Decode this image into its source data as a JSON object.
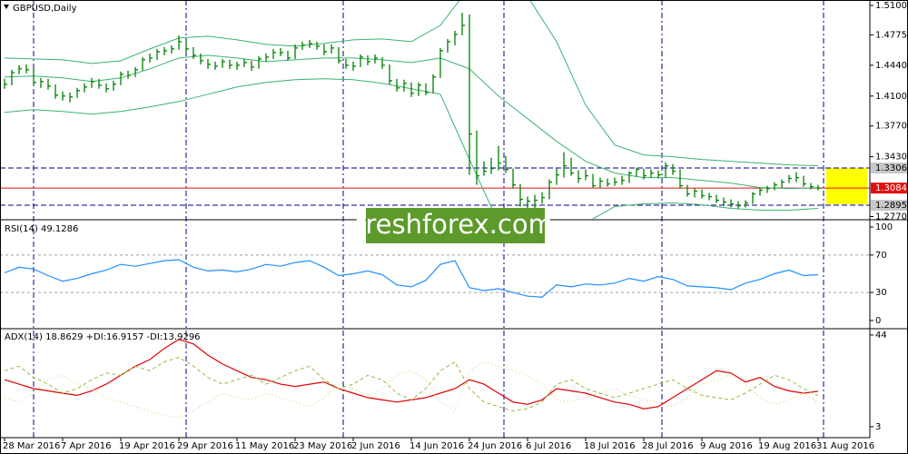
{
  "chart_data": [
    {
      "type": "ohlc",
      "title": "GBPUSD,Daily",
      "color": "#008000",
      "x": [
        0,
        1,
        2,
        3,
        4,
        5,
        6,
        7,
        8,
        9,
        10,
        11,
        12,
        13,
        14,
        15,
        16,
        17,
        18,
        19,
        20,
        21,
        22,
        23,
        24,
        25,
        26,
        27,
        28,
        29,
        30,
        31,
        32,
        33,
        34,
        35,
        36,
        37,
        38,
        39,
        40,
        41,
        42,
        43,
        44,
        45,
        46,
        47,
        48,
        49,
        50,
        51,
        52,
        53,
        54,
        55,
        56,
        57,
        58,
        59,
        60,
        61,
        62,
        63,
        64,
        65,
        66,
        67,
        68,
        69,
        70,
        71,
        72,
        73,
        74,
        75,
        76,
        77,
        78,
        79,
        80,
        81,
        82,
        83,
        84,
        85,
        86,
        87,
        88,
        89,
        90,
        91,
        92,
        93,
        94,
        95,
        96,
        97,
        98,
        99,
        100,
        101,
        102,
        103,
        104,
        105,
        106,
        107,
        108,
        109,
        110,
        111,
        112
      ],
      "high": [
        1.429,
        1.439,
        1.444,
        1.445,
        1.44,
        1.43,
        1.429,
        1.423,
        1.415,
        1.414,
        1.419,
        1.424,
        1.43,
        1.429,
        1.424,
        1.427,
        1.437,
        1.438,
        1.442,
        1.453,
        1.457,
        1.462,
        1.464,
        1.466,
        1.477,
        1.471,
        1.464,
        1.457,
        1.451,
        1.448,
        1.451,
        1.45,
        1.448,
        1.451,
        1.449,
        1.454,
        1.457,
        1.462,
        1.463,
        1.46,
        1.467,
        1.47,
        1.472,
        1.47,
        1.467,
        1.467,
        1.464,
        1.451,
        1.448,
        1.456,
        1.455,
        1.456,
        1.453,
        1.445,
        1.429,
        1.428,
        1.425,
        1.425,
        1.424,
        1.434,
        1.463,
        1.473,
        1.482,
        1.502,
        1.5,
        1.372,
        1.338,
        1.342,
        1.355,
        1.344,
        1.33,
        1.313,
        1.299,
        1.301,
        1.304,
        1.318,
        1.33,
        1.348,
        1.342,
        1.328,
        1.329,
        1.324,
        1.32,
        1.319,
        1.32,
        1.322,
        1.327,
        1.331,
        1.33,
        1.329,
        1.328,
        1.337,
        1.335,
        1.329,
        1.312,
        1.308,
        1.307,
        1.303,
        1.301,
        1.298,
        1.296,
        1.294,
        1.295,
        1.304,
        1.309,
        1.311,
        1.315,
        1.318,
        1.323,
        1.326,
        1.322,
        1.314,
        1.312
      ],
      "low": [
        1.418,
        1.422,
        1.434,
        1.435,
        1.422,
        1.419,
        1.417,
        1.407,
        1.405,
        1.403,
        1.408,
        1.414,
        1.419,
        1.418,
        1.414,
        1.416,
        1.422,
        1.429,
        1.431,
        1.438,
        1.447,
        1.45,
        1.455,
        1.457,
        1.461,
        1.458,
        1.451,
        1.445,
        1.44,
        1.439,
        1.441,
        1.44,
        1.439,
        1.442,
        1.438,
        1.44,
        1.448,
        1.451,
        1.454,
        1.449,
        1.451,
        1.461,
        1.463,
        1.461,
        1.455,
        1.457,
        1.446,
        1.44,
        1.438,
        1.442,
        1.444,
        1.446,
        1.44,
        1.423,
        1.415,
        1.415,
        1.409,
        1.41,
        1.411,
        1.413,
        1.43,
        1.458,
        1.466,
        1.477,
        1.323,
        1.312,
        1.322,
        1.324,
        1.328,
        1.325,
        1.308,
        1.288,
        1.282,
        1.286,
        1.291,
        1.296,
        1.312,
        1.32,
        1.322,
        1.314,
        1.317,
        1.309,
        1.308,
        1.31,
        1.311,
        1.312,
        1.314,
        1.321,
        1.318,
        1.32,
        1.319,
        1.32,
        1.323,
        1.308,
        1.299,
        1.298,
        1.297,
        1.295,
        1.292,
        1.29,
        1.287,
        1.286,
        1.287,
        1.291,
        1.3,
        1.303,
        1.306,
        1.309,
        1.314,
        1.315,
        1.31,
        1.307,
        1.306
      ],
      "close": [
        1.423,
        1.436,
        1.44,
        1.439,
        1.425,
        1.426,
        1.421,
        1.411,
        1.41,
        1.409,
        1.416,
        1.42,
        1.426,
        1.422,
        1.418,
        1.423,
        1.434,
        1.433,
        1.439,
        1.45,
        1.452,
        1.459,
        1.46,
        1.462,
        1.47,
        1.462,
        1.455,
        1.449,
        1.445,
        1.443,
        1.448,
        1.444,
        1.444,
        1.447,
        1.442,
        1.451,
        1.453,
        1.458,
        1.458,
        1.452,
        1.463,
        1.466,
        1.468,
        1.465,
        1.459,
        1.463,
        1.449,
        1.444,
        1.443,
        1.453,
        1.448,
        1.452,
        1.444,
        1.427,
        1.419,
        1.424,
        1.413,
        1.422,
        1.414,
        1.431,
        1.46,
        1.47,
        1.478,
        1.488,
        1.368,
        1.322,
        1.327,
        1.33,
        1.336,
        1.329,
        1.312,
        1.296,
        1.294,
        1.295,
        1.298,
        1.315,
        1.323,
        1.333,
        1.325,
        1.319,
        1.322,
        1.311,
        1.316,
        1.313,
        1.315,
        1.317,
        1.325,
        1.329,
        1.322,
        1.325,
        1.323,
        1.333,
        1.327,
        1.311,
        1.302,
        1.305,
        1.3,
        1.299,
        1.295,
        1.293,
        1.291,
        1.289,
        1.292,
        1.302,
        1.306,
        1.308,
        1.312,
        1.315,
        1.319,
        1.32,
        1.313,
        1.31,
        1.3084
      ],
      "bands": {
        "color": "#3cb371",
        "x": [
          0,
          4,
          8,
          12,
          16,
          20,
          24,
          28,
          32,
          36,
          40,
          44,
          48,
          52,
          56,
          60,
          64,
          68,
          72,
          76,
          80,
          84,
          88,
          92,
          96,
          100,
          104,
          108,
          112
        ],
        "upper": [
          1.452,
          1.451,
          1.45,
          1.446,
          1.449,
          1.462,
          1.474,
          1.476,
          1.472,
          1.467,
          1.465,
          1.468,
          1.472,
          1.473,
          1.47,
          1.488,
          1.53,
          1.54,
          1.52,
          1.47,
          1.4,
          1.356,
          1.345,
          1.343,
          1.34,
          1.338,
          1.336,
          1.334,
          1.333
        ],
        "middle": [
          1.431,
          1.432,
          1.43,
          1.426,
          1.43,
          1.44,
          1.452,
          1.455,
          1.452,
          1.448,
          1.45,
          1.452,
          1.452,
          1.45,
          1.447,
          1.452,
          1.44,
          1.41,
          1.385,
          1.36,
          1.338,
          1.325,
          1.32,
          1.32,
          1.317,
          1.314,
          1.309,
          1.308,
          1.309
        ],
        "lower": [
          1.392,
          1.395,
          1.393,
          1.39,
          1.393,
          1.398,
          1.404,
          1.412,
          1.42,
          1.425,
          1.428,
          1.429,
          1.428,
          1.424,
          1.418,
          1.412,
          1.34,
          1.27,
          1.24,
          1.245,
          1.27,
          1.288,
          1.291,
          1.292,
          1.29,
          1.286,
          1.284,
          1.284,
          1.286
        ]
      },
      "levels": [
        1.3306,
        1.3084,
        1.2895
      ],
      "level_colors": [
        "#00008b",
        "#e01010",
        "#00008b"
      ],
      "level_label_fills": [
        "#c8c8c8",
        "#e01010",
        "#c8c8c8"
      ],
      "xlim": [
        -0.625,
        119.125
      ],
      "ylim": [
        1.2745,
        1.516
      ],
      "yticks": [
        {
          "value": 1.51,
          "label": "1.5100"
        },
        {
          "value": 1.4775,
          "label": "1.4775"
        },
        {
          "value": 1.444,
          "label": "1.4440"
        },
        {
          "value": 1.41,
          "label": "1.4100"
        },
        {
          "value": 1.377,
          "label": "1.3770"
        },
        {
          "value": 1.343,
          "label": "1.3430"
        },
        {
          "value": 1.277,
          "label": "1.2770"
        }
      ]
    },
    {
      "type": "line",
      "title": "RSI(14) 49.1286",
      "x": [
        0,
        2,
        4,
        6,
        8,
        10,
        12,
        14,
        16,
        18,
        20,
        22,
        24,
        26,
        28,
        30,
        32,
        34,
        36,
        38,
        40,
        42,
        44,
        46,
        48,
        50,
        52,
        54,
        56,
        58,
        60,
        62,
        64,
        66,
        68,
        70,
        72,
        74,
        76,
        78,
        80,
        82,
        84,
        86,
        88,
        90,
        92,
        94,
        96,
        98,
        100,
        102,
        104,
        106,
        108,
        110,
        112
      ],
      "series": [
        {
          "color": "#1e90ff",
          "values": [
            51,
            57,
            55,
            48,
            42,
            45,
            50,
            54,
            60,
            58,
            61,
            64,
            65,
            57,
            53,
            54,
            52,
            55,
            60,
            58,
            62,
            64,
            57,
            48,
            50,
            53,
            49,
            38,
            36,
            43,
            60,
            64,
            35,
            32,
            34,
            30,
            26,
            25,
            38,
            36,
            39,
            38,
            40,
            45,
            42,
            47,
            44,
            37,
            36,
            35,
            33,
            40,
            44,
            50,
            54,
            48,
            49
          ]
        }
      ],
      "levels": [
        70,
        30
      ],
      "xlim": [
        -0.625,
        119.125
      ],
      "ylim": [
        -7.8,
        106.8
      ],
      "yticks": [
        100,
        70,
        30,
        0
      ]
    },
    {
      "type": "line",
      "title": "ADX(14) 18.8629 +DI:16.9157 -DI:13.9296",
      "x": [
        0,
        2,
        4,
        6,
        8,
        10,
        12,
        14,
        16,
        18,
        20,
        22,
        24,
        26,
        28,
        30,
        32,
        34,
        36,
        38,
        40,
        42,
        44,
        46,
        48,
        50,
        52,
        54,
        56,
        58,
        60,
        62,
        64,
        66,
        68,
        70,
        72,
        74,
        76,
        78,
        80,
        82,
        84,
        86,
        88,
        90,
        92,
        94,
        96,
        98,
        100,
        102,
        104,
        106,
        108,
        110,
        112
      ],
      "series": [
        {
          "color": "#e00000",
          "values": [
            24,
            22,
            20,
            19,
            18,
            17,
            19,
            22,
            26,
            30,
            33,
            38,
            42,
            40,
            35,
            31,
            28,
            25,
            24,
            22,
            21,
            22,
            23,
            20,
            18,
            16,
            15,
            14,
            15,
            16,
            18,
            20,
            24,
            22,
            18,
            14,
            13,
            15,
            20,
            19,
            18,
            16,
            14,
            13,
            11,
            12,
            16,
            20,
            24,
            28,
            27,
            23,
            25,
            21,
            19,
            18,
            18.86
          ]
        },
        {
          "color": "#8fbc3f",
          "dash": "4 3",
          "values": [
            28,
            30,
            25,
            22,
            18,
            20,
            24,
            27,
            26,
            30,
            28,
            32,
            34,
            30,
            25,
            22,
            24,
            26,
            22,
            25,
            28,
            30,
            24,
            20,
            22,
            26,
            24,
            18,
            15,
            20,
            28,
            32,
            20,
            14,
            12,
            10,
            11,
            14,
            22,
            24,
            20,
            18,
            16,
            18,
            20,
            22,
            24,
            20,
            17,
            16,
            15,
            18,
            22,
            26,
            24,
            20,
            16.9
          ]
        },
        {
          "color": "#cccc70",
          "dash": "1 3",
          "values": [
            16,
            14,
            18,
            24,
            26,
            22,
            20,
            16,
            14,
            12,
            10,
            8,
            7,
            10,
            14,
            18,
            16,
            15,
            18,
            16,
            14,
            12,
            16,
            22,
            20,
            17,
            20,
            26,
            28,
            24,
            14,
            10,
            28,
            32,
            30,
            28,
            26,
            22,
            15,
            14,
            16,
            18,
            20,
            17,
            15,
            14,
            12,
            16,
            22,
            24,
            26,
            22,
            16,
            13,
            15,
            18,
            13.9
          ]
        }
      ],
      "xlim": [
        -0.625,
        119.125
      ],
      "ylim": [
        -1.9,
        46.4
      ],
      "yticks": [
        44,
        3
      ],
      "xticks": [
        {
          "value": 0,
          "label": "28 Mar 2016"
        },
        {
          "value": 8,
          "label": "7 Apr 2016"
        },
        {
          "value": 16,
          "label": "19 Apr 2016"
        },
        {
          "value": 24,
          "label": "29 Apr 2016"
        },
        {
          "value": 32,
          "label": "11 May 2016"
        },
        {
          "value": 40,
          "label": "23 May 2016"
        },
        {
          "value": 48,
          "label": "2 Jun 2016"
        },
        {
          "value": 56,
          "label": "14 Jun 2016"
        },
        {
          "value": 64,
          "label": "24 Jun 2016"
        },
        {
          "value": 72,
          "label": "6 Jul 2016"
        },
        {
          "value": 80,
          "label": "18 Jul 2016"
        },
        {
          "value": 88,
          "label": "28 Jul 2016"
        },
        {
          "value": 96,
          "label": "9 Aug 2016"
        },
        {
          "value": 104,
          "label": "19 Aug 2016"
        },
        {
          "value": 112,
          "label": "31 Aug 2016"
        }
      ]
    }
  ],
  "watermark": "freshforex.com"
}
